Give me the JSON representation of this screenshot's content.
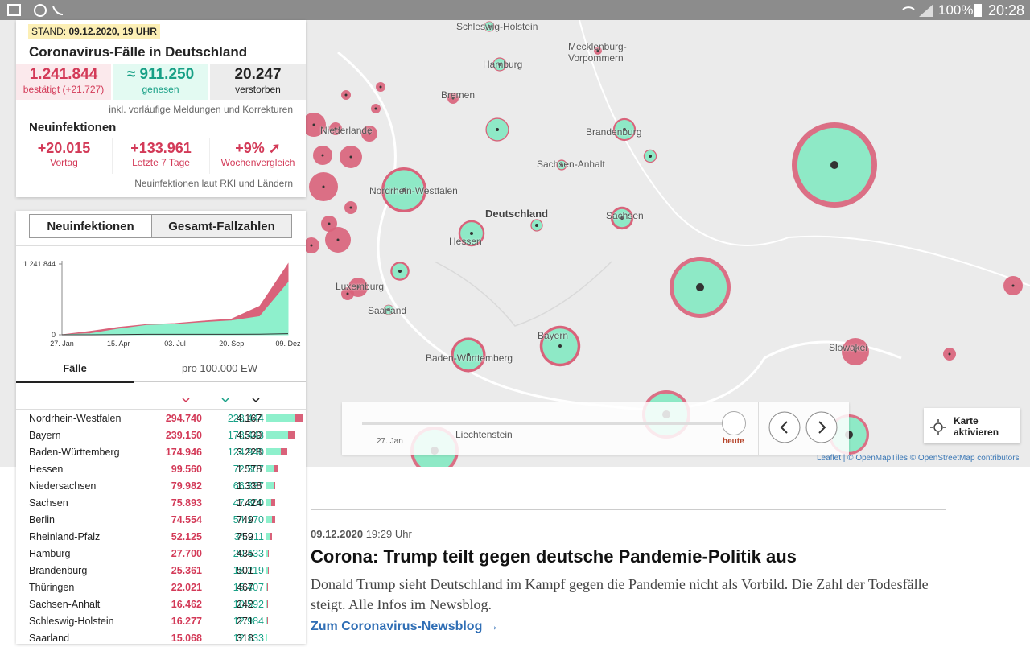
{
  "status_bar": {
    "battery": "100%",
    "time": "20:28"
  },
  "panel": {
    "stand_label": "STAND:",
    "stand_date": "09.12.2020, 19 UHR",
    "title": "Coronavirus-Fälle in Deutschland",
    "totals": [
      {
        "value": "1.241.844",
        "label": "bestätigt (+21.727)"
      },
      {
        "value": "≈ 911.250",
        "label": "genesen"
      },
      {
        "value": "20.247",
        "label": "verstorben"
      }
    ],
    "totals_note": "inkl. vorläufige Meldungen und Korrekturen",
    "new_title": "Neuinfektionen",
    "new_cases": [
      {
        "value": "+20.015",
        "label": "Vortag"
      },
      {
        "value": "+133.961",
        "label": "Letzte 7 Tage"
      },
      {
        "value": "+9% ➚",
        "label": "Wochenvergleich"
      }
    ],
    "new_note": "Neuinfektionen laut RKI und Ländern",
    "tabs": [
      "Neuinfektionen",
      "Gesamt-Fallzahlen"
    ],
    "table_tabs": [
      "Fälle",
      "pro 100.000 EW"
    ],
    "table": {
      "rows": [
        [
          "Nordrhein-Westfalen",
          "294.740",
          "228.444",
          "4.167"
        ],
        [
          "Bayern",
          "239.150",
          "178.443",
          "4.539"
        ],
        [
          "Baden-Württemberg",
          "174.946",
          "124.940",
          "3.228"
        ],
        [
          "Hessen",
          "99.560",
          "72.307",
          "1.578"
        ],
        [
          "Niedersachsen",
          "79.982",
          "66.337",
          "1.338"
        ],
        [
          "Sachsen",
          "75.893",
          "47.800",
          "1.424"
        ],
        [
          "Berlin",
          "74.554",
          "54.170",
          "749"
        ],
        [
          "Rheinland-Pfalz",
          "52.125",
          "34.211",
          "759"
        ],
        [
          "Hamburg",
          "27.700",
          "20.433",
          "435"
        ],
        [
          "Brandenburg",
          "25.361",
          "18.219",
          "501"
        ],
        [
          "Thüringen",
          "22.021",
          "15.407",
          "467"
        ],
        [
          "Sachsen-Anhalt",
          "16.462",
          "10.592",
          "242"
        ],
        [
          "Schleswig-Holstein",
          "16.277",
          "12.984",
          "271"
        ],
        [
          "Saarland",
          "15.068",
          "12.133",
          "318"
        ]
      ]
    }
  },
  "chart_data": {
    "type": "area",
    "categories": [
      "27. Jan",
      null,
      "15. Apr",
      null,
      "03. Jul",
      null,
      "20. Sep",
      null,
      "09. Dez"
    ],
    "series": [
      {
        "color": "#d9627a",
        "values": [
          0,
          60000,
          130000,
          180000,
          198000,
          240000,
          275000,
          500000,
          1241844
        ]
      },
      {
        "color": "#8ef0cc",
        "values": [
          0,
          20000,
          100000,
          165000,
          182000,
          215000,
          245000,
          320000,
          911250
        ]
      },
      {
        "color": "#333333",
        "values": [
          0,
          500,
          4000,
          8900,
          9100,
          9300,
          9500,
          10500,
          20247
        ]
      }
    ],
    "ylim": [
      0,
      1241844
    ],
    "yticks": [
      0,
      {
        "value": 1241844,
        "label": "1.241.844"
      }
    ]
  },
  "map": {
    "labels": [
      "Schleswig-Holstein",
      "Hamburg",
      "Mecklenburg-Vorpommern",
      "Bremen",
      "Brandenburg",
      "Sachsen-Anhalt",
      "Niederlande",
      "Nordrhein-Westfalen",
      "Deutschland",
      "Hessen",
      "Sachsen",
      "Luxemburg",
      "Saarland",
      "Baden-Württemberg",
      "Bayern",
      "Slowakei",
      "Liechtenstein"
    ],
    "timeline_start": "27. Jan",
    "timeline_end": "heute",
    "activate": "Karte aktivieren",
    "attribution": "Leaflet | © OpenMapTiles © OpenStreetMap contributors"
  },
  "article": {
    "date": "09.12.2020",
    "time": "19:29 Uhr",
    "headline": "Corona: Trump teilt gegen deutsche Pandemie-Politik aus",
    "body": "Donald Trump sieht Deutschland im Kampf gegen die Pandemie nicht als Vorbild. Die Zahl der Todesfälle steigt. Alle Infos im Newsblog.",
    "link": "Zum Coronavirus-Newsblog →"
  }
}
